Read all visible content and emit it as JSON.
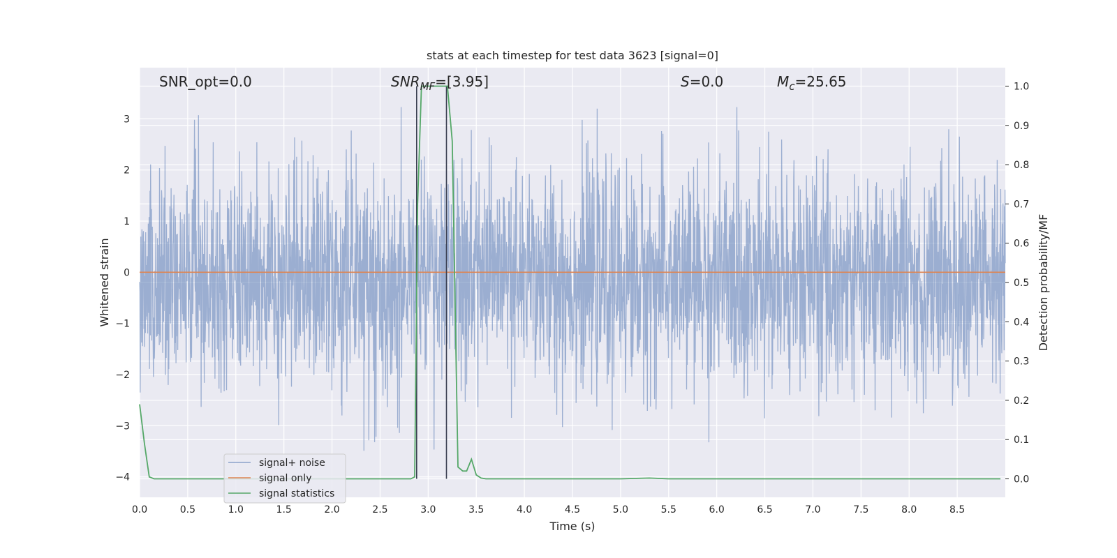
{
  "chart_data": {
    "type": "line",
    "title": "stats at each timestep for test data 3623 [signal=0]",
    "xlabel": "Time (s)",
    "ylabel": "Whitened strain",
    "y2label": "Detection probability/MF",
    "xlim": [
      0.0,
      9.0
    ],
    "ylim": [
      -4.4,
      4.0
    ],
    "y2lim": [
      -0.047,
      1.047
    ],
    "x_ticks": [
      "0.0",
      "0.5",
      "1.0",
      "1.5",
      "2.0",
      "2.5",
      "3.0",
      "3.5",
      "4.0",
      "4.5",
      "5.0",
      "5.5",
      "6.0",
      "6.5",
      "7.0",
      "7.5",
      "8.0",
      "8.5"
    ],
    "y_ticks": [
      "3",
      "2",
      "1",
      "0",
      "−1",
      "−2",
      "−3",
      "−4"
    ],
    "y2_ticks": [
      "1.0",
      "0.9",
      "0.8",
      "0.7",
      "0.6",
      "0.5",
      "0.4",
      "0.3",
      "0.2",
      "0.1",
      "0.0"
    ],
    "grid": true,
    "legend_position": "lower-left",
    "annotations": {
      "snr_opt": "SNR_opt=0.0",
      "snr_mf_main": "SNR",
      "snr_mf_sub": "MF",
      "snr_mf_val": "=[3.95]",
      "s_main": "S",
      "s_val": "=0.0",
      "mc_main": "M",
      "mc_sub": "c",
      "mc_val": "=25.65"
    },
    "vertical_lines_x": [
      2.88,
      3.19
    ],
    "series": [
      {
        "name": "signal+ noise",
        "color": "#4c72b0",
        "axis": "left",
        "kind": "noise",
        "band": [
          -1.7,
          1.3
        ],
        "spike_range": [
          -3.5,
          3.4
        ]
      },
      {
        "name": "signal only",
        "color": "#dd8452",
        "axis": "left",
        "x": [
          0.0,
          9.0
        ],
        "y": [
          0.0,
          0.0
        ]
      },
      {
        "name": "signal statistics",
        "color": "#55a868",
        "axis": "right",
        "x": [
          0.0,
          0.05,
          0.1,
          0.15,
          0.5,
          1.0,
          1.5,
          2.0,
          2.5,
          2.82,
          2.86,
          2.89,
          2.93,
          2.96,
          3.0,
          3.1,
          3.2,
          3.25,
          3.31,
          3.36,
          3.4,
          3.45,
          3.5,
          3.55,
          3.6,
          4.0,
          5.0,
          5.3,
          5.5,
          6.0,
          7.0,
          8.0,
          8.95
        ],
        "y": [
          0.19,
          0.09,
          0.005,
          0.0,
          0.0,
          0.0,
          0.0,
          0.0,
          0.0,
          0.0,
          0.005,
          0.7,
          1.0,
          1.0,
          1.0,
          1.0,
          1.0,
          0.86,
          0.03,
          0.02,
          0.02,
          0.05,
          0.01,
          0.002,
          0.0,
          0.0,
          0.0,
          0.002,
          0.0,
          0.0,
          0.0,
          0.0,
          0.0
        ]
      }
    ]
  }
}
